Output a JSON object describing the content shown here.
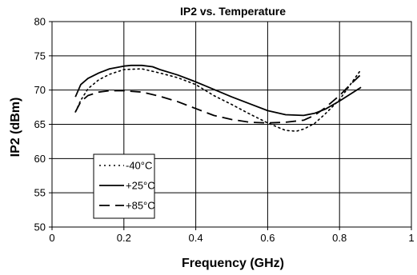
{
  "chart_data": {
    "type": "line",
    "title": "IP2 vs. Temperature",
    "xlabel": "Frequency (GHz)",
    "ylabel": "IP2 (dBm)",
    "xlim": [
      0,
      1
    ],
    "ylim": [
      50,
      80
    ],
    "xticks": [
      0,
      0.2,
      0.4,
      0.6,
      0.8,
      1
    ],
    "xtick_labels": [
      "0",
      "0.2",
      "0.4",
      "0.6",
      "0.8",
      "1"
    ],
    "yticks": [
      50,
      55,
      60,
      65,
      70,
      75,
      80
    ],
    "ytick_labels": [
      "50",
      "55",
      "60",
      "65",
      "70",
      "75",
      "80"
    ],
    "grid": true,
    "legend_position": "bottom-left",
    "series": [
      {
        "name": "-40°C",
        "style": "dotted",
        "color": "#000000",
        "x": [
          0.065,
          0.08,
          0.1,
          0.13,
          0.16,
          0.2,
          0.25,
          0.3,
          0.35,
          0.4,
          0.45,
          0.5,
          0.55,
          0.6,
          0.65,
          0.68,
          0.7,
          0.73,
          0.76,
          0.8,
          0.83,
          0.86
        ],
        "y": [
          66.8,
          68.5,
          70.2,
          71.5,
          72.3,
          73.0,
          73.1,
          72.5,
          71.8,
          70.8,
          69.2,
          67.9,
          66.5,
          65.2,
          64.1,
          64.0,
          64.3,
          65.1,
          66.5,
          68.6,
          70.8,
          73.0
        ]
      },
      {
        "name": "+25°C",
        "style": "solid",
        "color": "#000000",
        "x": [
          0.065,
          0.08,
          0.1,
          0.13,
          0.16,
          0.2,
          0.22,
          0.25,
          0.28,
          0.3,
          0.35,
          0.4,
          0.45,
          0.5,
          0.55,
          0.6,
          0.65,
          0.7,
          0.73,
          0.76,
          0.8,
          0.83,
          0.86
        ],
        "y": [
          69.0,
          70.8,
          71.7,
          72.5,
          73.1,
          73.5,
          73.6,
          73.6,
          73.4,
          73.0,
          72.2,
          71.2,
          70.1,
          69.0,
          68.0,
          67.0,
          66.4,
          66.3,
          66.6,
          67.2,
          68.4,
          69.4,
          70.4
        ]
      },
      {
        "name": "+85°C",
        "style": "dashed",
        "color": "#000000",
        "x": [
          0.065,
          0.08,
          0.1,
          0.13,
          0.16,
          0.2,
          0.25,
          0.3,
          0.35,
          0.4,
          0.45,
          0.5,
          0.55,
          0.6,
          0.65,
          0.7,
          0.73,
          0.76,
          0.8,
          0.83,
          0.86
        ],
        "y": [
          66.8,
          68.3,
          69.2,
          69.7,
          69.9,
          69.9,
          69.7,
          69.1,
          68.3,
          67.3,
          66.3,
          65.7,
          65.3,
          65.2,
          65.3,
          65.6,
          66.3,
          67.4,
          69.2,
          70.8,
          72.3
        ]
      }
    ]
  }
}
